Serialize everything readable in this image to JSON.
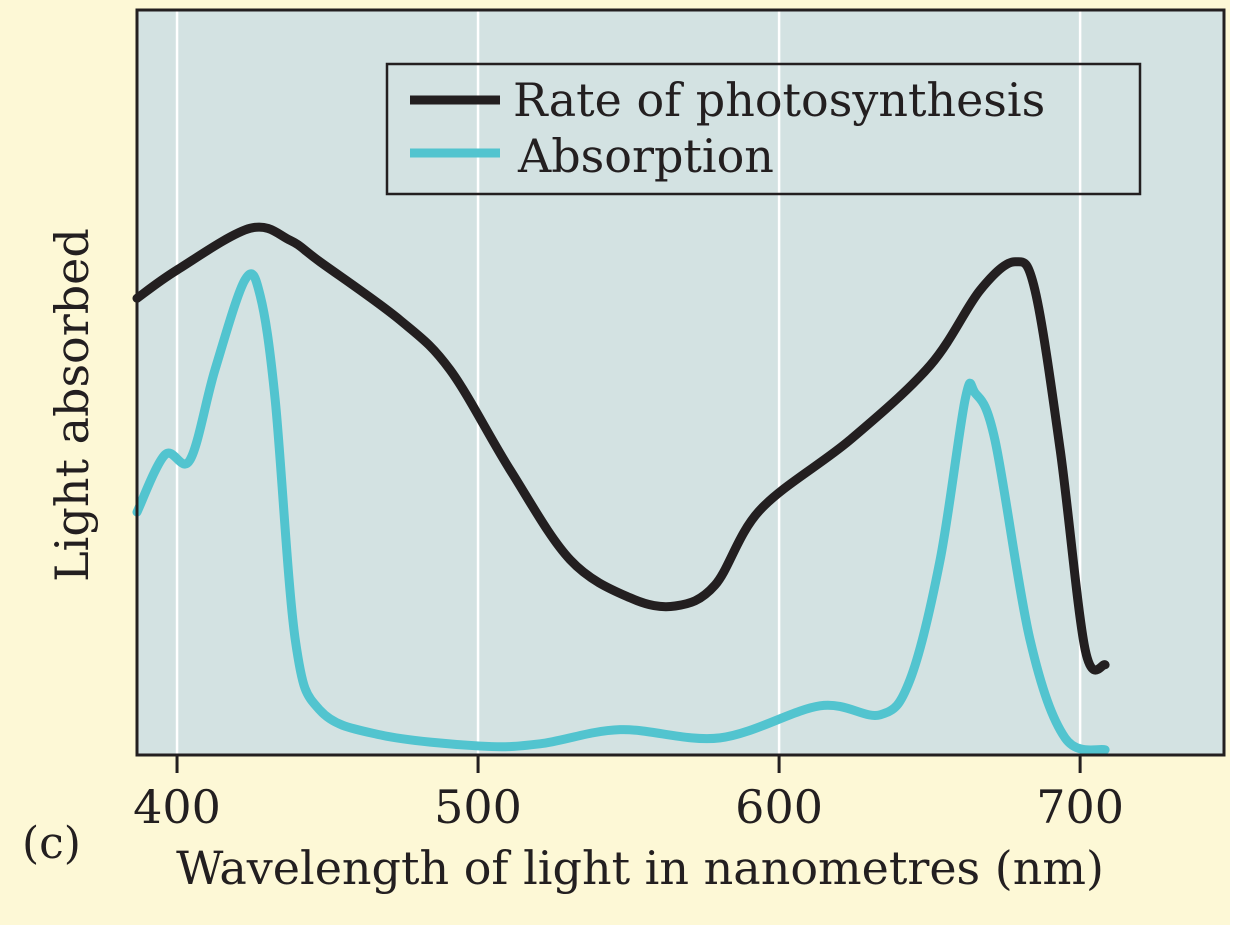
{
  "figure_label": "(c)",
  "colors": {
    "background": "#fdf8d6",
    "plot_background": "#d3e2e2",
    "photosynthesis": "#231f20",
    "absorption": "#52c4cf",
    "gridline": "#ffffff"
  },
  "chart_data": {
    "type": "line",
    "title": "",
    "xlabel": "Wavelength of light in nanometres (nm)",
    "ylabel": "Light absorbed",
    "xlim": [
      386.7,
      747.8
    ],
    "ylim": [
      0,
      100
    ],
    "y_scale_note_visible": false,
    "x_ticks": [
      400,
      500,
      600,
      700
    ],
    "x_tick_labels": [
      "400",
      "500",
      "600",
      "700"
    ],
    "grid": "vertical at ticks",
    "legend": {
      "position": "top-right",
      "entries": [
        "Rate of photosynthesis",
        "Absorption"
      ]
    },
    "series": [
      {
        "name": "Rate of photosynthesis",
        "x": [
          386.7,
          400,
          424.3,
          437.5,
          447.5,
          474,
          490.7,
          510.6,
          530.6,
          550.5,
          565.5,
          578.7,
          593.7,
          623.6,
          650.2,
          666.8,
          678.4,
          685,
          693.4,
          701.7,
          708.3
        ],
        "y": [
          61.3,
          65.1,
          70.7,
          69.1,
          66.2,
          58.4,
          51.7,
          38.3,
          26.2,
          21.1,
          20,
          22.8,
          32.9,
          42.3,
          52.3,
          62.4,
          66.2,
          62.4,
          40.9,
          14.1,
          12.1
        ]
      },
      {
        "name": "Absorption",
        "x": [
          386.7,
          396,
          404.3,
          412.6,
          422.6,
          427.6,
          432.6,
          439.3,
          447.5,
          467.5,
          500.7,
          520.6,
          547.2,
          580.4,
          613.6,
          633.6,
          643.5,
          653.5,
          661.8,
          665.1,
          671.7,
          683.4,
          695,
          708.3
        ],
        "y": [
          32.6,
          40.3,
          39.6,
          51.7,
          63.8,
          61.7,
          47.7,
          15.4,
          6.0,
          2.7,
          1.2,
          1.5,
          3.4,
          2.3,
          6.6,
          5.4,
          10.1,
          26.2,
          47.7,
          48.6,
          42.3,
          15.4,
          2.3,
          0.7
        ]
      }
    ]
  }
}
